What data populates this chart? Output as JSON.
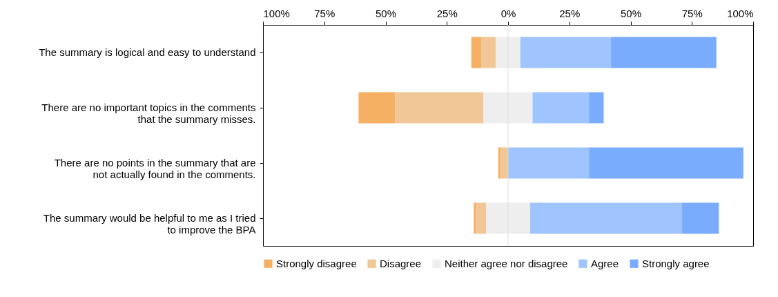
{
  "chart_data": {
    "type": "bar",
    "orientation": "horizontal",
    "categories": [
      "The summary is logical and easy to understand",
      "There are no important topics in the comments that the summary misses.",
      "There are no points in the summary that are not actually found in the comments.",
      "The summary would be helpful to me as I tried to improve the BPA"
    ],
    "series": [
      {
        "name": "Strongly disagree",
        "color": "#f5b063",
        "values": [
          4,
          15,
          1,
          1
        ],
        "base": [
          -15,
          -61,
          -4,
          -14
        ]
      },
      {
        "name": "Disagree",
        "color": "#f2c797",
        "values": [
          6,
          36,
          3,
          4
        ],
        "base": [
          -11,
          -46,
          -3,
          -13
        ]
      },
      {
        "name": "Neither agree nor disagree",
        "color": "#eeeeee",
        "values": [
          10,
          20,
          null,
          18
        ],
        "base": [
          -5,
          -10,
          null,
          -9
        ]
      },
      {
        "name": "Agree",
        "color": "#a0c4fd",
        "values": [
          37,
          23,
          33,
          62
        ],
        "base": [
          5,
          10,
          0,
          9
        ]
      },
      {
        "name": "Strongly agree",
        "color": "#7aacfd",
        "values": [
          43,
          6,
          63,
          15
        ],
        "base": [
          42,
          33,
          33,
          71
        ]
      }
    ],
    "xlim": [
      -100,
      100
    ],
    "xticks": [
      {
        "value": -100,
        "label": "100%"
      },
      {
        "value": -75,
        "label": "75%"
      },
      {
        "value": -50,
        "label": "50%"
      },
      {
        "value": -25,
        "label": "25%"
      },
      {
        "value": 0,
        "label": "0%"
      },
      {
        "value": 25,
        "label": "25%"
      },
      {
        "value": 50,
        "label": "50%"
      },
      {
        "value": 75,
        "label": "75%"
      },
      {
        "value": 100,
        "label": "100%"
      }
    ],
    "ref_lines": [
      {
        "axis": "x",
        "value": 0,
        "color": "#dddddd"
      }
    ],
    "grid": false,
    "legend": "bottom"
  }
}
